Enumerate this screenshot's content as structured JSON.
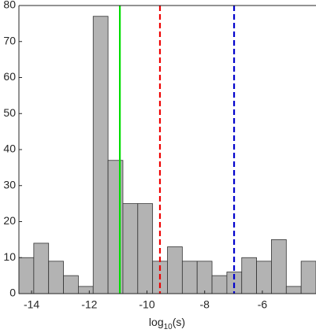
{
  "chart_data": {
    "type": "histogram",
    "bins": [
      -14.44,
      -13.925,
      -13.41,
      -12.895,
      -12.38,
      -11.865,
      -11.35,
      -10.835,
      -10.32,
      -9.805,
      -9.29,
      -8.775,
      -8.26,
      -7.745,
      -7.23,
      -6.715,
      -6.2,
      -5.685,
      -5.17,
      -4.655,
      -4.14
    ],
    "values": [
      10,
      14,
      9,
      5,
      2,
      77,
      37,
      25,
      25,
      9,
      13,
      9,
      9,
      5,
      6,
      10,
      9,
      15,
      2,
      9
    ],
    "color": "#b3b3b3",
    "edge_color": "#333333",
    "xlim": [
      -14.44,
      -4.14
    ],
    "ylim": [
      0,
      80
    ],
    "xticks": [
      -14,
      -12,
      -10,
      -8,
      -6
    ],
    "yticks": [
      0,
      10,
      20,
      30,
      40,
      50,
      60,
      70,
      80
    ],
    "xlabel": [
      "log",
      "10",
      "(s)"
    ],
    "vlines": [
      {
        "x": -10.94,
        "color": "#00dd00",
        "dashed": false
      },
      {
        "x": -9.55,
        "color": "#ee0000",
        "dashed": true
      },
      {
        "x": -6.98,
        "color": "#0000cc",
        "dashed": true
      }
    ]
  }
}
